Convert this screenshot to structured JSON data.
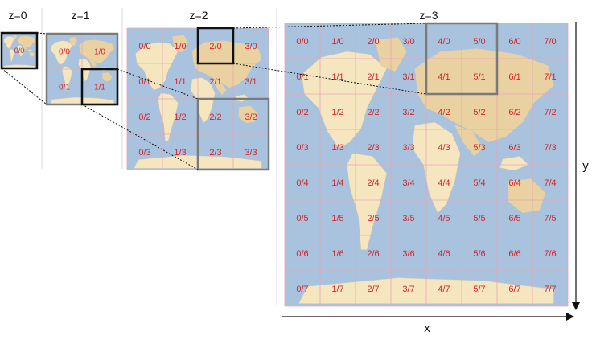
{
  "levels": [
    {
      "z": 0,
      "label": "z=0"
    },
    {
      "z": 1,
      "label": "z=1"
    },
    {
      "z": 2,
      "label": "z=2"
    },
    {
      "z": 3,
      "label": "z=3"
    }
  ],
  "axes": {
    "x_label": "x",
    "y_label": "y"
  },
  "colors": {
    "ocean": "#a9c2dd",
    "land": "#f6e6c0",
    "land_dark": "#e9d1a1",
    "grid": "#e6a6b4",
    "tile_label": "#d4262b",
    "highlight_black": "#111111",
    "highlight_gray": "#7a7a7a",
    "separator": "#d8d8d8",
    "text": "#111111"
  },
  "highlights": {
    "z0_tile": "0/0",
    "z1_tile": "1/1",
    "z2_tiles_black": [
      "2/0"
    ],
    "z2_tiles_gray": [
      "2/2",
      "3/2",
      "2/3",
      "3/3"
    ],
    "z3_tiles_gray": [
      "4/0",
      "5/0",
      "4/1",
      "5/1"
    ]
  }
}
